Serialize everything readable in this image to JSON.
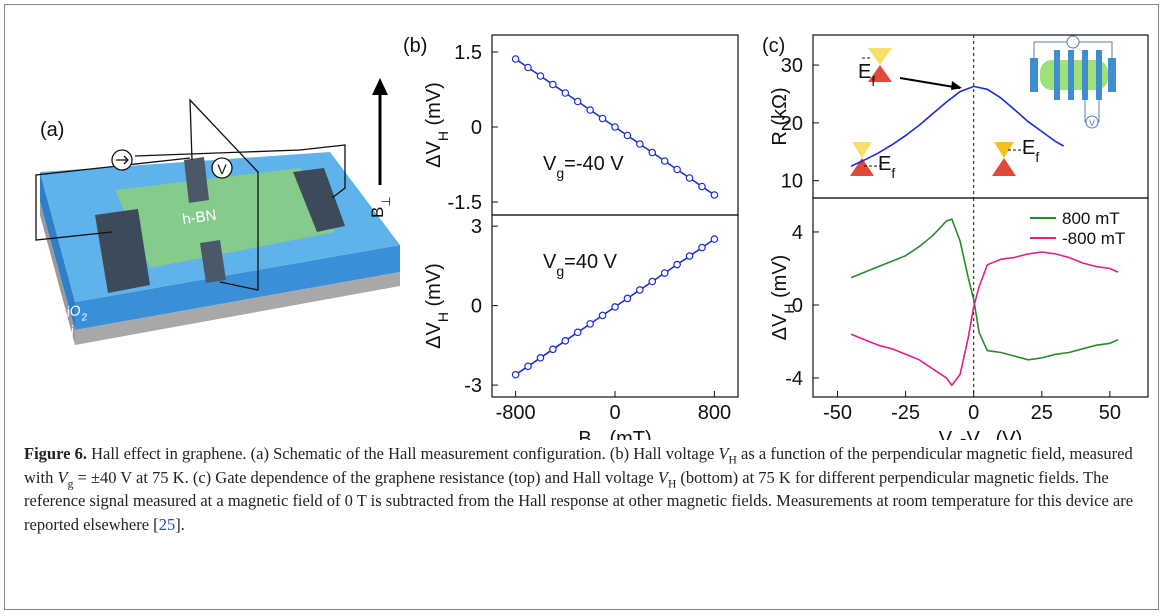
{
  "figure": {
    "panel_labels": [
      "(a)",
      "(b)",
      "(c)"
    ],
    "caption": {
      "parts": [
        "Figure 6.",
        "  Hall effect in graphene. (a) Schematic of the Hall measurement configuration. (b) Hall voltage ",
        "V",
        "H",
        " as a function of the perpendicular magnetic field, measured with ",
        "V",
        "g",
        " = ±40 V at 75 K. (c) Gate dependence of the graphene resistance (top) and Hall voltage ",
        "V",
        "H",
        " (bottom) at 75 K for different perpendicular magnetic fields. The reference signal measured at a magnetic field of 0 T is subtracted from the Hall response at other magnetic fields. Measurements at room temperature for this device are reported elsewhere [",
        "25",
        "]."
      ]
    }
  },
  "schematic": {
    "material": "h-BN",
    "oxide": [
      "SiO",
      "2"
    ],
    "substrate": "Si",
    "field": [
      "B",
      "⊥"
    ],
    "voltmeter": "V"
  },
  "chart_data": [
    {
      "type": "scatter",
      "line": true,
      "marker": "open-circle",
      "x": [
        -800,
        -700,
        -600,
        -500,
        -400,
        -300,
        -200,
        -100,
        0,
        100,
        200,
        300,
        400,
        500,
        600,
        700,
        800
      ],
      "series": [
        {
          "color": "#1a2ed0",
          "values": [
            1.36,
            1.19,
            1.02,
            0.85,
            0.68,
            0.51,
            0.34,
            0.17,
            0,
            -0.17,
            -0.34,
            -0.51,
            -0.68,
            -0.85,
            -1.02,
            -1.19,
            -1.36
          ]
        }
      ],
      "xlim": [
        -990,
        990
      ],
      "ylim": [
        -1.76,
        1.84
      ],
      "yticks": [
        -1.5,
        0,
        1.5
      ],
      "ylabel": [
        "ΔV",
        "H",
        " (mV)"
      ],
      "annotations": [
        [
          "V",
          "g",
          "=-40 V"
        ]
      ]
    },
    {
      "type": "scatter",
      "line": true,
      "marker": "open-circle",
      "x": [
        -800,
        -700,
        -600,
        -500,
        -400,
        -300,
        -200,
        -100,
        0,
        100,
        200,
        300,
        400,
        500,
        600,
        700,
        800
      ],
      "series": [
        {
          "color": "#1a2ed0",
          "values": [
            -2.61,
            -2.29,
            -1.97,
            -1.65,
            -1.33,
            -1.01,
            -0.69,
            -0.37,
            -0.05,
            0.27,
            0.59,
            0.91,
            1.23,
            1.55,
            1.87,
            2.19,
            2.51
          ]
        }
      ],
      "xlim": [
        -990,
        990
      ],
      "ylim": [
        -3.45,
        3.42
      ],
      "xticks": [
        -800,
        0,
        800
      ],
      "yticks": [
        -3,
        0,
        3
      ],
      "xlabel": [
        "B",
        "⊥",
        " (mT)"
      ],
      "ylabel": [
        "ΔV",
        "H",
        " (mV)"
      ],
      "annotations": [
        [
          "V",
          "g",
          "=40 V"
        ]
      ]
    },
    {
      "type": "line",
      "x": [
        -45,
        -40,
        -35,
        -30,
        -25,
        -20,
        -15,
        -10,
        -5,
        0,
        5,
        10,
        15,
        20,
        25,
        30,
        33
      ],
      "series": [
        {
          "color": "#1a2ed0",
          "values": [
            12.5,
            13.6,
            14.8,
            16.2,
            17.8,
            19.6,
            21.6,
            23.6,
            25.4,
            26.3,
            25.8,
            24.3,
            22.3,
            20.2,
            18.5,
            16.8,
            16.0
          ]
        }
      ],
      "xlim": [
        -59,
        64
      ],
      "ylim": [
        7,
        35.2
      ],
      "yticks": [
        10,
        20,
        30
      ],
      "vline": 0,
      "ylabel": [
        "R (kΩ)"
      ],
      "annotations": [
        [
          "E",
          "f"
        ],
        [
          "E",
          "f"
        ],
        [
          "E",
          "f"
        ]
      ],
      "inset_label": "V"
    },
    {
      "type": "line",
      "legend": "upper right",
      "x": [
        -45,
        -40,
        -35,
        -30,
        -25,
        -20,
        -15,
        -10,
        -8,
        -5,
        -2,
        0,
        2,
        5,
        10,
        15,
        20,
        25,
        30,
        35,
        40,
        45,
        50,
        53
      ],
      "series": [
        {
          "name": "800 mT",
          "color": "#2a8a2a",
          "values": [
            1.5,
            1.8,
            2.1,
            2.4,
            2.7,
            3.2,
            3.8,
            4.6,
            4.7,
            3.5,
            1.5,
            0.3,
            -1.5,
            -2.5,
            -2.6,
            -2.8,
            -3.0,
            -2.9,
            -2.7,
            -2.6,
            -2.4,
            -2.2,
            -2.1,
            -1.9
          ]
        },
        {
          "name": "-800 mT",
          "color": "#e0208a",
          "values": [
            -1.6,
            -1.9,
            -2.2,
            -2.4,
            -2.7,
            -3.0,
            -3.5,
            -4.0,
            -4.4,
            -3.8,
            -1.8,
            -0.1,
            1.0,
            2.2,
            2.5,
            2.6,
            2.8,
            2.9,
            2.8,
            2.6,
            2.3,
            2.1,
            2.0,
            1.8
          ]
        }
      ],
      "xlim": [
        -59,
        64
      ],
      "ylim": [
        -5.04,
        5.86
      ],
      "xticks": [
        -50,
        -25,
        0,
        25,
        50
      ],
      "yticks": [
        -4,
        0,
        4
      ],
      "vline": 0,
      "xlabel": [
        "V",
        "g",
        "-V",
        "D",
        " (V)"
      ],
      "ylabel": [
        "ΔV",
        "H",
        " (mV)"
      ]
    }
  ]
}
